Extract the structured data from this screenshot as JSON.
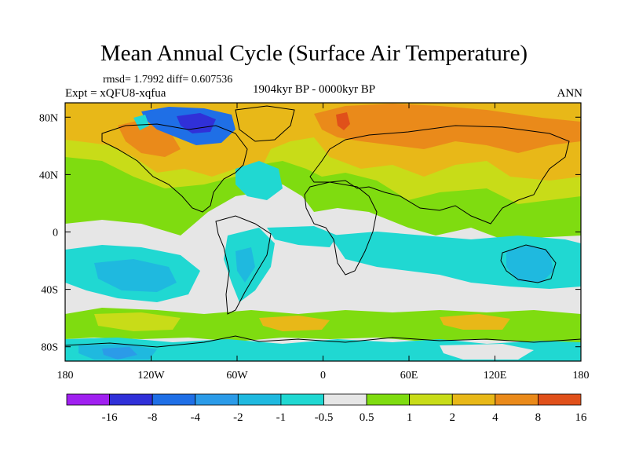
{
  "header": {
    "title": "Mean Annual Cycle (Surface Air Temperature)",
    "stats": "rmsd= 1.7992 diff= 0.607536",
    "experiment": "Expt = xQFU8-xqfua",
    "period": "1904kyr BP - 0000kyr BP",
    "season": "ANN"
  },
  "axes": {
    "x_ticks": [
      {
        "value": -180,
        "label": "180"
      },
      {
        "value": -120,
        "label": "120W"
      },
      {
        "value": -60,
        "label": "60W"
      },
      {
        "value": 0,
        "label": "0"
      },
      {
        "value": 60,
        "label": "60E"
      },
      {
        "value": 120,
        "label": "120E"
      },
      {
        "value": 180,
        "label": "180"
      }
    ],
    "y_ticks": [
      {
        "value": 80,
        "label": "80N"
      },
      {
        "value": 40,
        "label": "40N"
      },
      {
        "value": 0,
        "label": "0"
      },
      {
        "value": -40,
        "label": "40S"
      },
      {
        "value": -80,
        "label": "80S"
      }
    ],
    "lon_range": [
      -180,
      180
    ],
    "lat_range": [
      -90,
      90
    ]
  },
  "colorbar": {
    "colors": [
      "#a020f0",
      "#3030d8",
      "#1f6fe6",
      "#2b9be8",
      "#1fb9df",
      "#20d8d2",
      "#e6e6e6",
      "#7fdc10",
      "#c8dc18",
      "#e8b818",
      "#ea8a1a",
      "#e0501a"
    ],
    "labels": [
      "-16",
      "-8",
      "-4",
      "-2",
      "-1",
      "-0.5",
      "0.5",
      "1",
      "2",
      "4",
      "8",
      "16"
    ]
  },
  "colors": {
    "neutral": "#e6e6e6",
    "coast": "#000000"
  }
}
